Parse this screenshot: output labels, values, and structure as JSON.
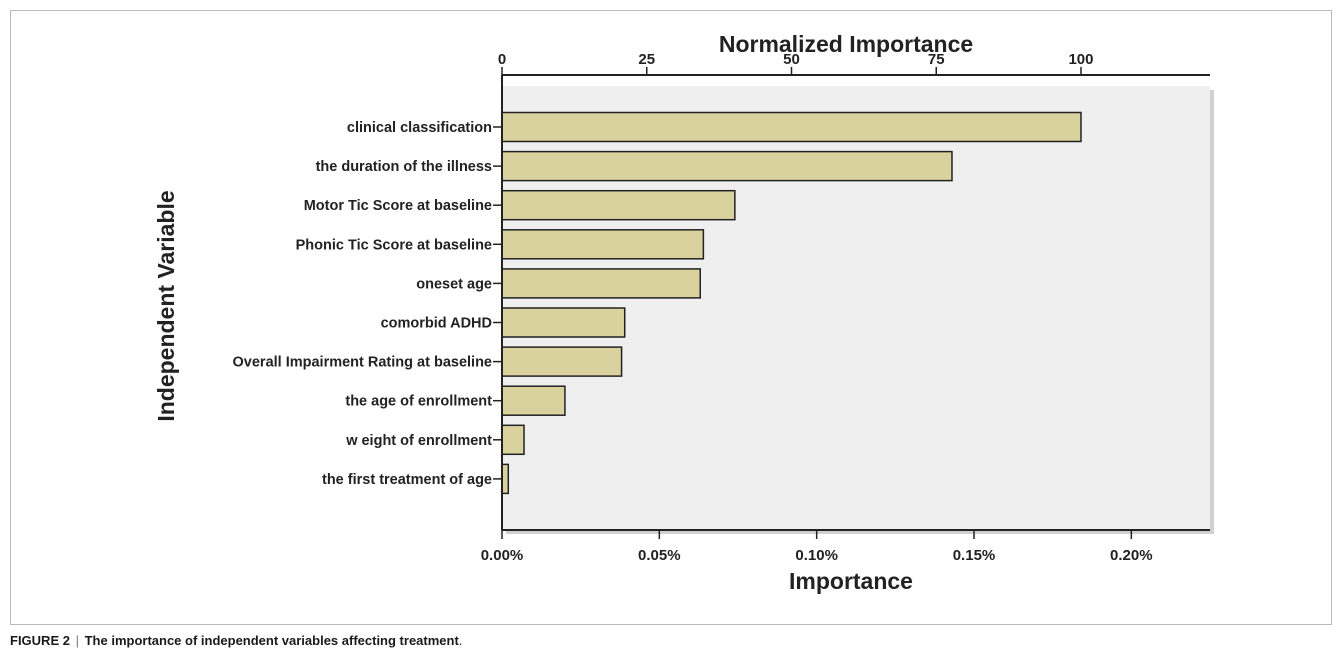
{
  "chart_data": {
    "type": "bar",
    "orientation": "horizontal",
    "categories": [
      "clinical classification",
      "the duration of the illness",
      "Motor Tic Score at baseline",
      "Phonic Tic Score at baseline",
      "oneset age",
      "comorbid ADHD",
      "Overall Impairment Rating at baseline",
      "the age of enrollment",
      "w eight of enrollment",
      "the first treatment of age"
    ],
    "values": [
      0.184,
      0.143,
      0.074,
      0.064,
      0.063,
      0.039,
      0.038,
      0.02,
      0.007,
      0.002
    ],
    "xlabel": "Importance",
    "ylabel": "Independent Variable",
    "top_axis_label": "Normalized Importance",
    "xlim": [
      0,
      0.225
    ],
    "x_ticks": [
      0,
      0.05,
      0.1,
      0.15,
      0.2
    ],
    "x_tick_labels": [
      "0.00%",
      "0.05%",
      "0.10%",
      "0.15%",
      "0.20%"
    ],
    "top_ticks": [
      0,
      25,
      50,
      75,
      100
    ],
    "top_tick_labels": [
      "0",
      "25",
      "50",
      "75",
      "100"
    ],
    "top_axis_max_importance": 0.184,
    "grid": false,
    "legend": "none",
    "colors": {
      "bar_fill": "#d9d29e",
      "bar_stroke": "#222222",
      "plot_background": "#efefef",
      "axis": "#222222"
    }
  },
  "caption": {
    "label": "FIGURE 2",
    "separator": "|",
    "text": "The importance of independent variables affecting treatment",
    "period": "."
  }
}
